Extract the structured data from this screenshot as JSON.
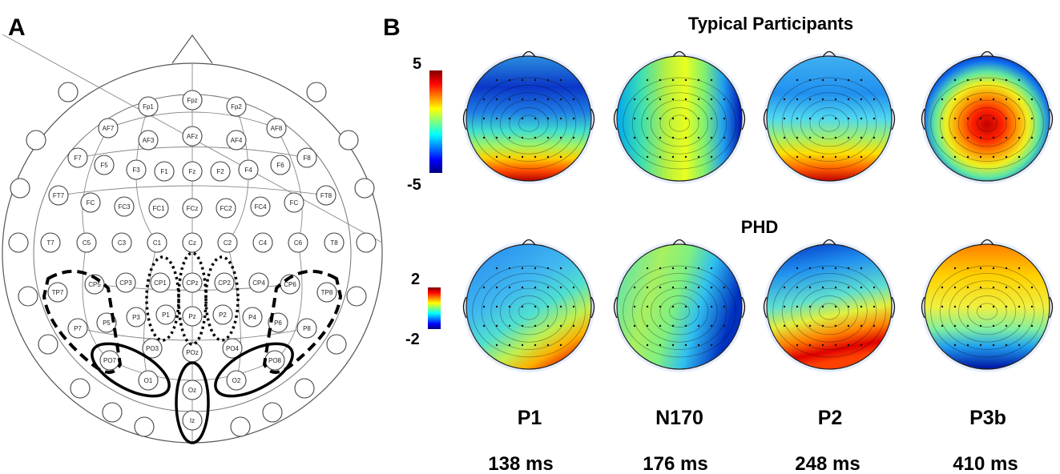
{
  "figure": {
    "panel_a_label": "A",
    "panel_b_label": "B",
    "groups": [
      {
        "title": "Typical Participants",
        "colorbar": {
          "max": "5",
          "min": "-5"
        }
      },
      {
        "title": "PHD",
        "colorbar": {
          "max": "2",
          "min": "-2"
        }
      }
    ],
    "components": [
      {
        "name": "P1",
        "time": "138 ms"
      },
      {
        "name": "N170",
        "time": "176 ms"
      },
      {
        "name": "P2",
        "time": "248 ms"
      },
      {
        "name": "P3b",
        "time": "410 ms"
      }
    ],
    "colormap": [
      "#00007f",
      "#0000ff",
      "#007fff",
      "#00ffff",
      "#7fff7f",
      "#ffff00",
      "#ff7f00",
      "#ff0000",
      "#7f0000"
    ]
  },
  "electrode_labels": [
    "Fpz",
    "Fp1",
    "Fp2",
    "AF7",
    "AF3",
    "AFz",
    "AF4",
    "AF8",
    "F7",
    "F5",
    "F3",
    "F1",
    "Fz",
    "F2",
    "F4",
    "F6",
    "F8",
    "FT7",
    "FC",
    "FC3",
    "FC1",
    "FCz",
    "FC2",
    "FC4",
    "FC",
    "FT8",
    "T7",
    "C5",
    "C3",
    "C1",
    "Cz",
    "C2",
    "C4",
    "C6",
    "T8",
    "CP5",
    "CP3",
    "CP1",
    "CPz",
    "CP2",
    "CP4",
    "CP6",
    "TP7",
    "TP8",
    "P1",
    "P3",
    "P5",
    "P7",
    "Pz",
    "P2",
    "P4",
    "P6",
    "P8",
    "PO3",
    "POz",
    "PO4",
    "PO7",
    "PO8",
    "O1",
    "Oz",
    "O2",
    "Iz"
  ]
}
